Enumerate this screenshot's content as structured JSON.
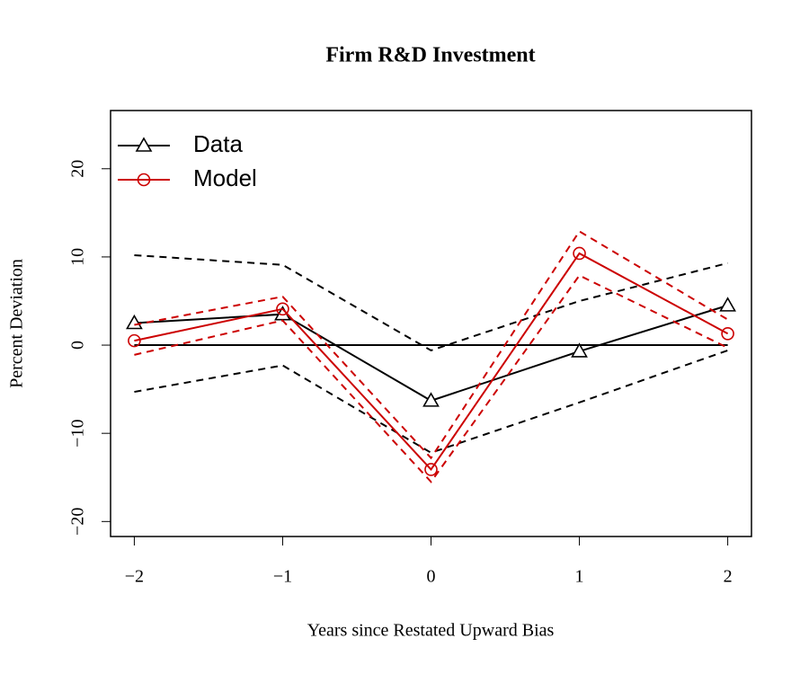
{
  "chart_data": {
    "type": "line",
    "title": "Firm R&D Investment",
    "x_label": "Years since Restated Upward Bias",
    "y_label": "Percent Deviation",
    "x": [
      -2,
      -1,
      0,
      1,
      2
    ],
    "series": [
      {
        "name": "Data",
        "color": "#000000",
        "marker": "triangle",
        "values": [
          2.5,
          3.5,
          -6.3,
          -0.7,
          4.5
        ],
        "upper": [
          10.2,
          9.1,
          -0.6,
          5.0,
          9.3
        ],
        "lower": [
          -5.3,
          -2.3,
          -12.2,
          -6.5,
          -0.6
        ]
      },
      {
        "name": "Model",
        "color": "#cc0000",
        "marker": "circle",
        "values": [
          0.5,
          4.1,
          -14.1,
          10.4,
          1.3
        ],
        "upper": [
          2.3,
          5.5,
          -12.8,
          12.9,
          2.9
        ],
        "lower": [
          -1.1,
          2.8,
          -15.5,
          7.9,
          -0.3
        ]
      }
    ],
    "reference_line": 0,
    "xlim": [
      -2.16,
      2.16
    ],
    "ylim": [
      -21.7,
      26.6
    ],
    "xticks": [
      {
        "value": -2,
        "label": "−2"
      },
      {
        "value": -1,
        "label": "−1"
      },
      0,
      1,
      2
    ],
    "yticks": [
      {
        "value": -20,
        "label": "−20"
      },
      {
        "value": -10,
        "label": "−10"
      },
      0,
      10,
      20
    ],
    "legend": "top-left"
  }
}
